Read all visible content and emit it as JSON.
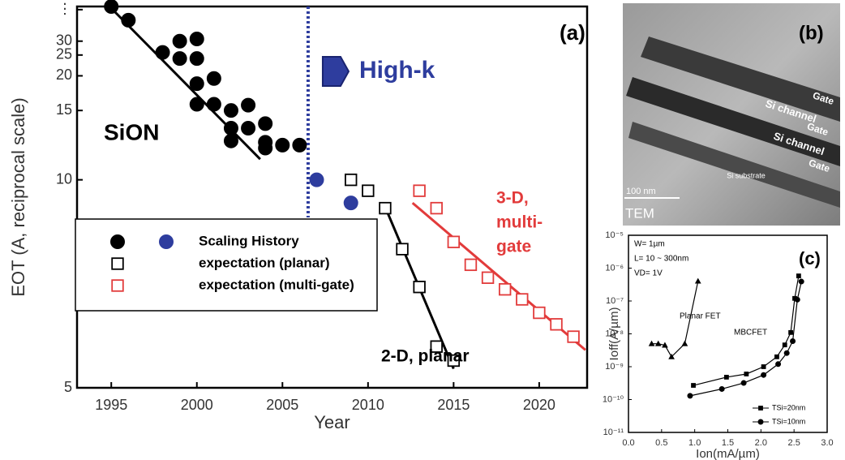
{
  "chart_data": [
    {
      "type": "scatter",
      "panel_label": "(a)",
      "xlabel": "Year",
      "ylabel": "EOT (A, reciprocal scale)",
      "yscale": "reciprocal",
      "xlim": [
        1993,
        2022.8
      ],
      "ylim": [
        5,
        60
      ],
      "xticks": [
        1995,
        2000,
        2005,
        2010,
        2015,
        2020
      ],
      "yticks": [
        5,
        10,
        15,
        20,
        25,
        30,
        {
          "value": 55,
          "label": "⋮"
        }
      ],
      "legend_box": true,
      "series": [
        {
          "name": "Scaling History",
          "color": "#000000",
          "marker": "circle",
          "filled": true,
          "x": [
            1995,
            1996,
            1998,
            1999,
            1999,
            2000,
            2000,
            2000,
            2000,
            2001,
            2001,
            2002,
            2002,
            2002,
            2003,
            2003,
            2004,
            2004,
            2004,
            2005,
            2006
          ],
          "values": [
            60,
            43,
            25.8,
            30,
            24,
            31,
            24,
            18.6,
            15.7,
            19.5,
            15.7,
            15,
            13.3,
            12.3,
            15.6,
            13.3,
            13.7,
            12.2,
            11.8,
            12,
            12
          ]
        },
        {
          "color": "#2e3d9e",
          "marker": "circle",
          "filled": true,
          "x": [
            2007,
            2009
          ],
          "values": [
            10,
            9
          ]
        },
        {
          "name": "expectation (planar)",
          "color": "#000000",
          "marker": "square",
          "filled": false,
          "x": [
            2009,
            2010,
            2011,
            2012,
            2013,
            2014,
            2015
          ],
          "values": [
            10,
            9.5,
            8.8,
            7.5,
            6.6,
            5.55,
            5.35
          ]
        },
        {
          "name": "expectation (multi-gate)",
          "color": "#e23b3b",
          "marker": "square",
          "filled": false,
          "x": [
            2013,
            2014,
            2015,
            2016,
            2017,
            2018,
            2019,
            2020,
            2021,
            2022
          ],
          "values": [
            9.5,
            8.8,
            7.7,
            7.1,
            6.8,
            6.55,
            6.35,
            6.1,
            5.9,
            5.7
          ]
        }
      ],
      "trend_lines": [
        {
          "color": "#000000",
          "x": [
            1994.9,
            2003.7
          ],
          "values": [
            60,
            11.1
          ]
        },
        {
          "color": "#000000",
          "x": [
            2010.9,
            2015
          ],
          "values": [
            9,
            5.24
          ]
        },
        {
          "color": "#e23b3b",
          "x": [
            2012.6,
            2022.7
          ],
          "values": [
            9,
            5.5
          ]
        }
      ],
      "divider_x": 2006.5,
      "annotations": [
        {
          "text": "SiON"
        },
        {
          "text": "High-k"
        },
        {
          "text": "2-D, planar"
        },
        {
          "lines": [
            "3-D,",
            "multi-",
            "gate"
          ]
        }
      ]
    },
    {
      "type": "scatter",
      "panel_label": "(c)",
      "xlabel": "Ion(mA/µm)",
      "ylabel": "Ioff(A/µm)",
      "yscale": "log",
      "xlim": [
        0,
        3
      ],
      "ylim": [
        1e-11,
        1e-05
      ],
      "xticks": [
        {
          "value": 0,
          "label": "0.0"
        },
        0.5,
        {
          "value": 1,
          "label": "1.0"
        },
        1.5,
        {
          "value": 2,
          "label": "2.0"
        },
        2.5,
        {
          "value": 3,
          "label": "3.0"
        }
      ],
      "yticks": [
        {
          "value": 1e-11,
          "label": "10⁻¹¹"
        },
        {
          "value": 1e-10,
          "label": "10⁻¹⁰"
        },
        {
          "value": 1e-09,
          "label": "10⁻⁹"
        },
        {
          "value": 1e-08,
          "label": "10⁻⁸"
        },
        {
          "value": 1e-07,
          "label": "10⁻⁷"
        },
        {
          "value": 1e-06,
          "label": "10⁻⁶"
        },
        {
          "value": 1e-05,
          "label": "10⁻⁵"
        }
      ],
      "series": [
        {
          "name": "Planar FET",
          "label_on_curve": true,
          "color": "#000000",
          "marker": "triangle",
          "filled": true,
          "line": true,
          "x": [
            0.35,
            0.45,
            0.55,
            0.65,
            0.85,
            1.05
          ],
          "values": [
            5e-09,
            5e-09,
            4.5e-09,
            2e-09,
            5e-09,
            4e-07
          ]
        },
        {
          "name": "TSi=20nm",
          "color": "#000000",
          "marker": "square",
          "filled": true,
          "line": true,
          "x": [
            0.98,
            1.48,
            1.78,
            2.04,
            2.24,
            2.36,
            2.45,
            2.51,
            2.57
          ],
          "values": [
            2.7e-10,
            4.8e-10,
            6e-10,
            1e-09,
            2e-09,
            4.6e-09,
            1.1e-08,
            1.2e-07,
            5.8e-07
          ]
        },
        {
          "name": "TSi=10nm",
          "color": "#000000",
          "marker": "circle",
          "filled": true,
          "line": true,
          "x": [
            0.93,
            1.41,
            1.74,
            2.04,
            2.26,
            2.39,
            2.48,
            2.55,
            2.61
          ],
          "values": [
            1.3e-10,
            2.1e-10,
            3.2e-10,
            5.6e-10,
            1.2e-09,
            2.6e-09,
            6e-09,
            1.1e-07,
            3.9e-07
          ]
        }
      ],
      "annotations": [
        {
          "text": "W= 1µm"
        },
        {
          "text": "L= 10 ~ 300nm"
        },
        {
          "text": "VD= 1V"
        },
        {
          "text": "MBCFET"
        }
      ]
    }
  ],
  "image_panel": {
    "panel_label": "(b)",
    "labels": [
      "Gate",
      "Si channel",
      "Gate",
      "Si channel",
      "Gate"
    ],
    "substrate": "Si substrate",
    "scale_bar": "100 nm",
    "caption": "TEM"
  }
}
